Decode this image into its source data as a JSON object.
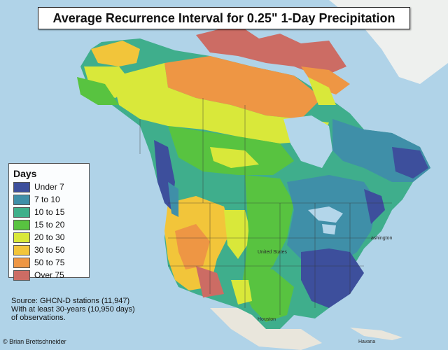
{
  "title": "Average Recurrence Interval for 0.25\" 1-Day Precipitation",
  "legend": {
    "title": "Days",
    "items": [
      {
        "label": "Under 7",
        "color": "#3d4f9c"
      },
      {
        "label": "7 to 10",
        "color": "#3f8fa8"
      },
      {
        "label": "10 to 15",
        "color": "#3fb08a"
      },
      {
        "label": "15 to 20",
        "color": "#58c340"
      },
      {
        "label": "20 to 30",
        "color": "#d9e83a"
      },
      {
        "label": "30 to 50",
        "color": "#f2c53a"
      },
      {
        "label": "50 to 75",
        "color": "#ee9644"
      },
      {
        "label": "Over 75",
        "color": "#cc6c64"
      }
    ]
  },
  "source": {
    "line1": "Source: GHCN-D stations (11,947)",
    "line2": "With at least 30-years (10,950 days)",
    "line3": "of observations."
  },
  "credit": "© Brian Brettschneider",
  "places": {
    "houston": "Houston",
    "havana": "Havana",
    "washington": "ashington",
    "united_states": "United States"
  }
}
